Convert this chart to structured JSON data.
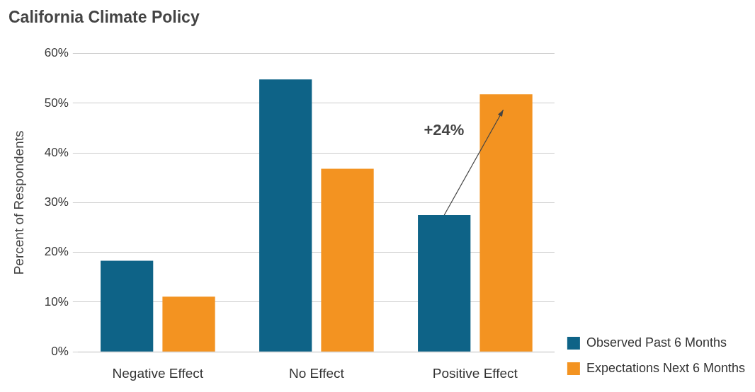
{
  "chart_data": {
    "type": "bar",
    "title": "California Climate Policy",
    "ylabel": "Percent of Respondents",
    "categories": [
      "Negative Effect",
      "No Effect",
      "Positive Effect"
    ],
    "series": [
      {
        "name": "Observed Past 6 Months",
        "color": "#0e6387",
        "values": [
          18.3,
          54.8,
          27.5
        ]
      },
      {
        "name": "Expectations Next 6 Months",
        "color": "#f39321",
        "values": [
          11.1,
          36.8,
          51.8
        ]
      }
    ],
    "ylim": [
      0,
      60
    ],
    "yticks": [
      {
        "value": 0,
        "label": "0%"
      },
      {
        "value": 10,
        "label": "10%"
      },
      {
        "value": 20,
        "label": "20%"
      },
      {
        "value": 30,
        "label": "30%"
      },
      {
        "value": 40,
        "label": "40%"
      },
      {
        "value": 50,
        "label": "50%"
      },
      {
        "value": 60,
        "label": "60%"
      }
    ],
    "annotations": [
      "+24%"
    ],
    "grid": "y",
    "legend": "bottom right"
  }
}
